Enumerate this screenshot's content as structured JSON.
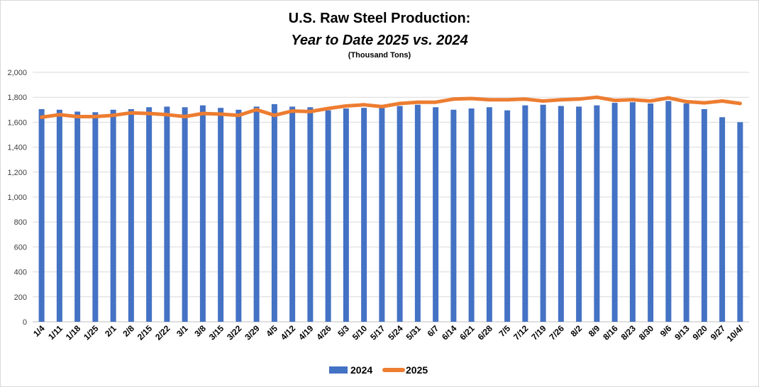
{
  "chart_data": {
    "type": "bar",
    "title": "U.S. Raw Steel Production:",
    "subtitle": "Year to Date 2025 vs. 2024",
    "units_note": "(Thousand Tons)",
    "ylim": [
      0,
      2000
    ],
    "yticks": [
      "0",
      "200",
      "400",
      "600",
      "800",
      "1,000",
      "1,200",
      "1,400",
      "1,600",
      "1,800",
      "2,000"
    ],
    "ytick_values": [
      0,
      200,
      400,
      600,
      800,
      1000,
      1200,
      1400,
      1600,
      1800,
      2000
    ],
    "grid": true,
    "legend_position": "bottom",
    "categories": [
      "1/4",
      "1/11",
      "1/18",
      "1/25",
      "2/1",
      "2/8",
      "2/15",
      "2/22",
      "3/1",
      "3/8",
      "3/15",
      "3/22",
      "3/29",
      "4/5",
      "4/12",
      "4/19",
      "4/26",
      "5/3",
      "5/10",
      "5/17",
      "5/24",
      "5/31",
      "6/7",
      "6/14",
      "6/21",
      "6/28",
      "7/5",
      "7/12",
      "7/19",
      "7/26",
      "8/2",
      "8/9",
      "8/16",
      "8/23",
      "8/30",
      "9/6",
      "9/13",
      "9/20",
      "9/27",
      "10/4/"
    ],
    "series": [
      {
        "name": "2024",
        "kind": "bar",
        "color": "#4472C4",
        "values": [
          1705,
          1700,
          1685,
          1680,
          1700,
          1705,
          1720,
          1725,
          1720,
          1735,
          1715,
          1700,
          1725,
          1745,
          1725,
          1720,
          1695,
          1710,
          1715,
          1715,
          1730,
          1740,
          1720,
          1700,
          1710,
          1720,
          1695,
          1735,
          1740,
          1730,
          1725,
          1735,
          1755,
          1760,
          1750,
          1770,
          1750,
          1705,
          1640,
          1600
        ]
      },
      {
        "name": "2025",
        "kind": "line",
        "color": "#ED7D31",
        "values": [
          1640,
          1660,
          1645,
          1645,
          1655,
          1675,
          1670,
          1660,
          1645,
          1670,
          1665,
          1655,
          1700,
          1655,
          1690,
          1685,
          1710,
          1730,
          1740,
          1725,
          1750,
          1760,
          1760,
          1785,
          1790,
          1780,
          1780,
          1785,
          1770,
          1780,
          1785,
          1800,
          1775,
          1780,
          1770,
          1795,
          1765,
          1755,
          1770,
          1750
        ]
      }
    ]
  }
}
